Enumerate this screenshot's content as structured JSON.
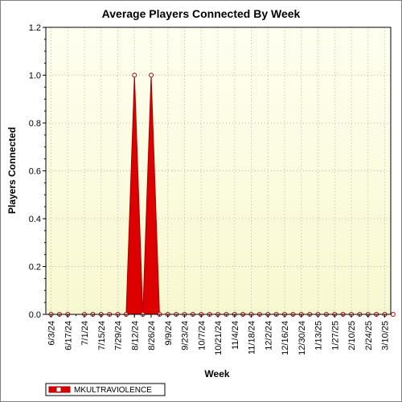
{
  "chart_data": {
    "type": "area",
    "title": "Average Players Connected By Week",
    "xlabel": "Week",
    "ylabel": "Players Connected",
    "ylim": [
      0,
      1.2
    ],
    "yticks": [
      "0.0",
      "0.2",
      "0.4",
      "0.6",
      "0.8",
      "1.0",
      "1.2"
    ],
    "xtick_labels": [
      "6/3/24",
      "6/17/24",
      "7/1/24",
      "7/15/24",
      "7/29/24",
      "8/12/24",
      "8/26/24",
      "9/9/24",
      "9/23/24",
      "10/7/24",
      "10/21/24",
      "11/4/24",
      "11/18/24",
      "12/2/24",
      "12/16/24",
      "12/30/24",
      "1/13/25",
      "1/27/25",
      "2/10/25",
      "2/24/25",
      "3/10/25"
    ],
    "x": [
      "6/3/24",
      "6/10/24",
      "6/17/24",
      "7/1/24",
      "7/8/24",
      "7/15/24",
      "7/22/24",
      "7/29/24",
      "8/5/24",
      "8/12/24",
      "8/19/24",
      "8/26/24",
      "9/2/24",
      "9/9/24",
      "9/16/24",
      "9/23/24",
      "9/30/24",
      "10/7/24",
      "10/14/24",
      "10/21/24",
      "10/28/24",
      "11/4/24",
      "11/11/24",
      "11/18/24",
      "11/25/24",
      "12/2/24",
      "12/9/24",
      "12/16/24",
      "12/23/24",
      "12/30/24",
      "1/6/25",
      "1/13/25",
      "1/20/25",
      "1/27/25",
      "2/3/25",
      "2/10/25",
      "2/17/25",
      "2/24/25",
      "3/3/25",
      "3/10/25",
      "3/17/25"
    ],
    "series": [
      {
        "name": "MKULTRAVIOLENCE",
        "values": [
          0,
          0,
          0,
          0,
          0,
          0,
          0,
          0,
          0,
          1,
          0,
          1,
          0,
          0,
          0,
          0,
          0,
          0,
          0,
          0,
          0,
          0,
          0,
          0,
          0,
          0,
          0,
          0,
          0,
          0,
          0,
          0,
          0,
          0,
          0,
          0,
          0,
          0,
          0,
          0,
          0
        ]
      }
    ],
    "grid": true,
    "legend": "bottom-left"
  },
  "colors": {
    "plot_bg_top": "#fffff0",
    "plot_bg_bottom": "#f8f8d0",
    "series_fill": "#dd0000",
    "series_line": "#aa0000",
    "marker_fill": "#ffffff",
    "grid": "#b8b8b8"
  }
}
